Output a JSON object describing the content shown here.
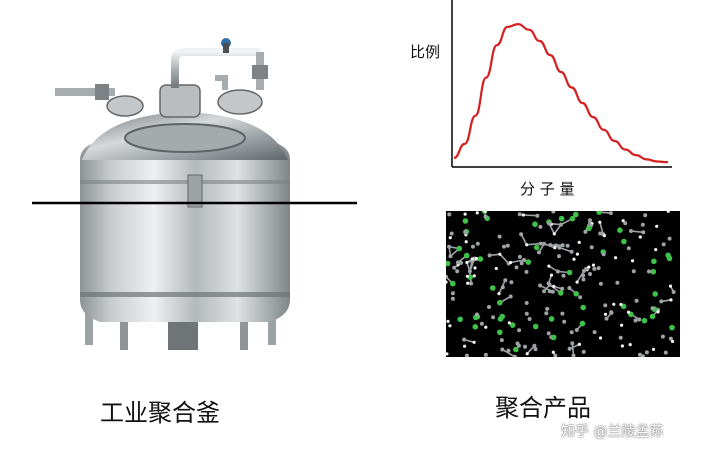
{
  "reactor": {
    "caption": "工业聚合釜"
  },
  "distribution_chart": {
    "ylabel": "比例",
    "xlabel": "分 子 量",
    "curve_color": "#d42020"
  },
  "product": {
    "caption": "聚合产品",
    "atom_colors": [
      "#9ea3a6",
      "#3fc24a",
      "#f2f2f2"
    ]
  },
  "watermark": {
    "text": "知乎 @兰陵孟荪"
  },
  "chart_data": {
    "type": "line",
    "title": "",
    "xlabel": "分 子 量",
    "ylabel": "比例",
    "x": [
      0,
      0.05,
      0.1,
      0.15,
      0.2,
      0.25,
      0.3,
      0.35,
      0.4,
      0.45,
      0.5,
      0.55,
      0.6,
      0.65,
      0.7,
      0.75,
      0.8,
      0.85,
      0.9,
      0.95,
      1.0
    ],
    "series": [
      {
        "values": [
          0.05,
          0.15,
          0.35,
          0.62,
          0.85,
          0.98,
          1.0,
          0.96,
          0.88,
          0.78,
          0.66,
          0.55,
          0.44,
          0.34,
          0.25,
          0.17,
          0.11,
          0.07,
          0.04,
          0.025,
          0.02
        ]
      }
    ],
    "xlim": [
      0,
      1
    ],
    "ylim": [
      0,
      1.1
    ],
    "grid": false
  }
}
